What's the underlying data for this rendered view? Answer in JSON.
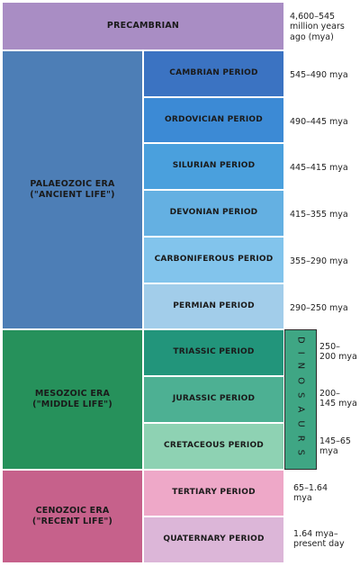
{
  "precambrian": {
    "label": "PRECAMBRIAN",
    "mya": "4,600–545\nmillion years\nago (mya)",
    "color": "#a98dc4"
  },
  "eras": [
    {
      "label": "PALAEOZOIC ERA\n(\"ANCIENT LIFE\")",
      "color": "#4d7eb6"
    },
    {
      "label": "MESOZOIC ERA\n(\"MIDDLE LIFE\")",
      "color": "#26915b"
    },
    {
      "label": "CENOZOIC ERA\n(\"RECENT LIFE\")",
      "color": "#c6618b"
    }
  ],
  "periods": [
    {
      "label": "CAMBRIAN PERIOD",
      "mya": "545–490 mya",
      "color": "#3b73c2"
    },
    {
      "label": "ORDOVICIAN PERIOD",
      "mya": "490–445 mya",
      "color": "#3c8ad5"
    },
    {
      "label": "SILURIAN PERIOD",
      "mya": "445–415 mya",
      "color": "#4aa0dd"
    },
    {
      "label": "DEVONIAN PERIOD",
      "mya": "415–355 mya",
      "color": "#64b0e2"
    },
    {
      "label": "CARBONIFEROUS PERIOD",
      "mya": "355–290 mya",
      "color": "#82c4ec"
    },
    {
      "label": "PERMIAN PERIOD",
      "mya": "290–250 mya",
      "color": "#a2cdea"
    },
    {
      "label": "TRIASSIC PERIOD",
      "mya": "250–\n200 mya",
      "color": "#22957b"
    },
    {
      "label": "JURASSIC PERIOD",
      "mya": "200–\n145 mya",
      "color": "#4db093"
    },
    {
      "label": "CRETACEOUS PERIOD",
      "mya": "145–65\nmya",
      "color": "#8ed2b3"
    },
    {
      "label": "TERTIARY PERIOD",
      "mya": "65–1.64\nmya",
      "color": "#eea8c8"
    },
    {
      "label": "QUATERNARY PERIOD",
      "mya": "1.64 mya–\npresent day",
      "color": "#dcb6d8"
    }
  ],
  "dinosaurs": {
    "label": "DINOSAURS",
    "color": "#3fa684"
  }
}
